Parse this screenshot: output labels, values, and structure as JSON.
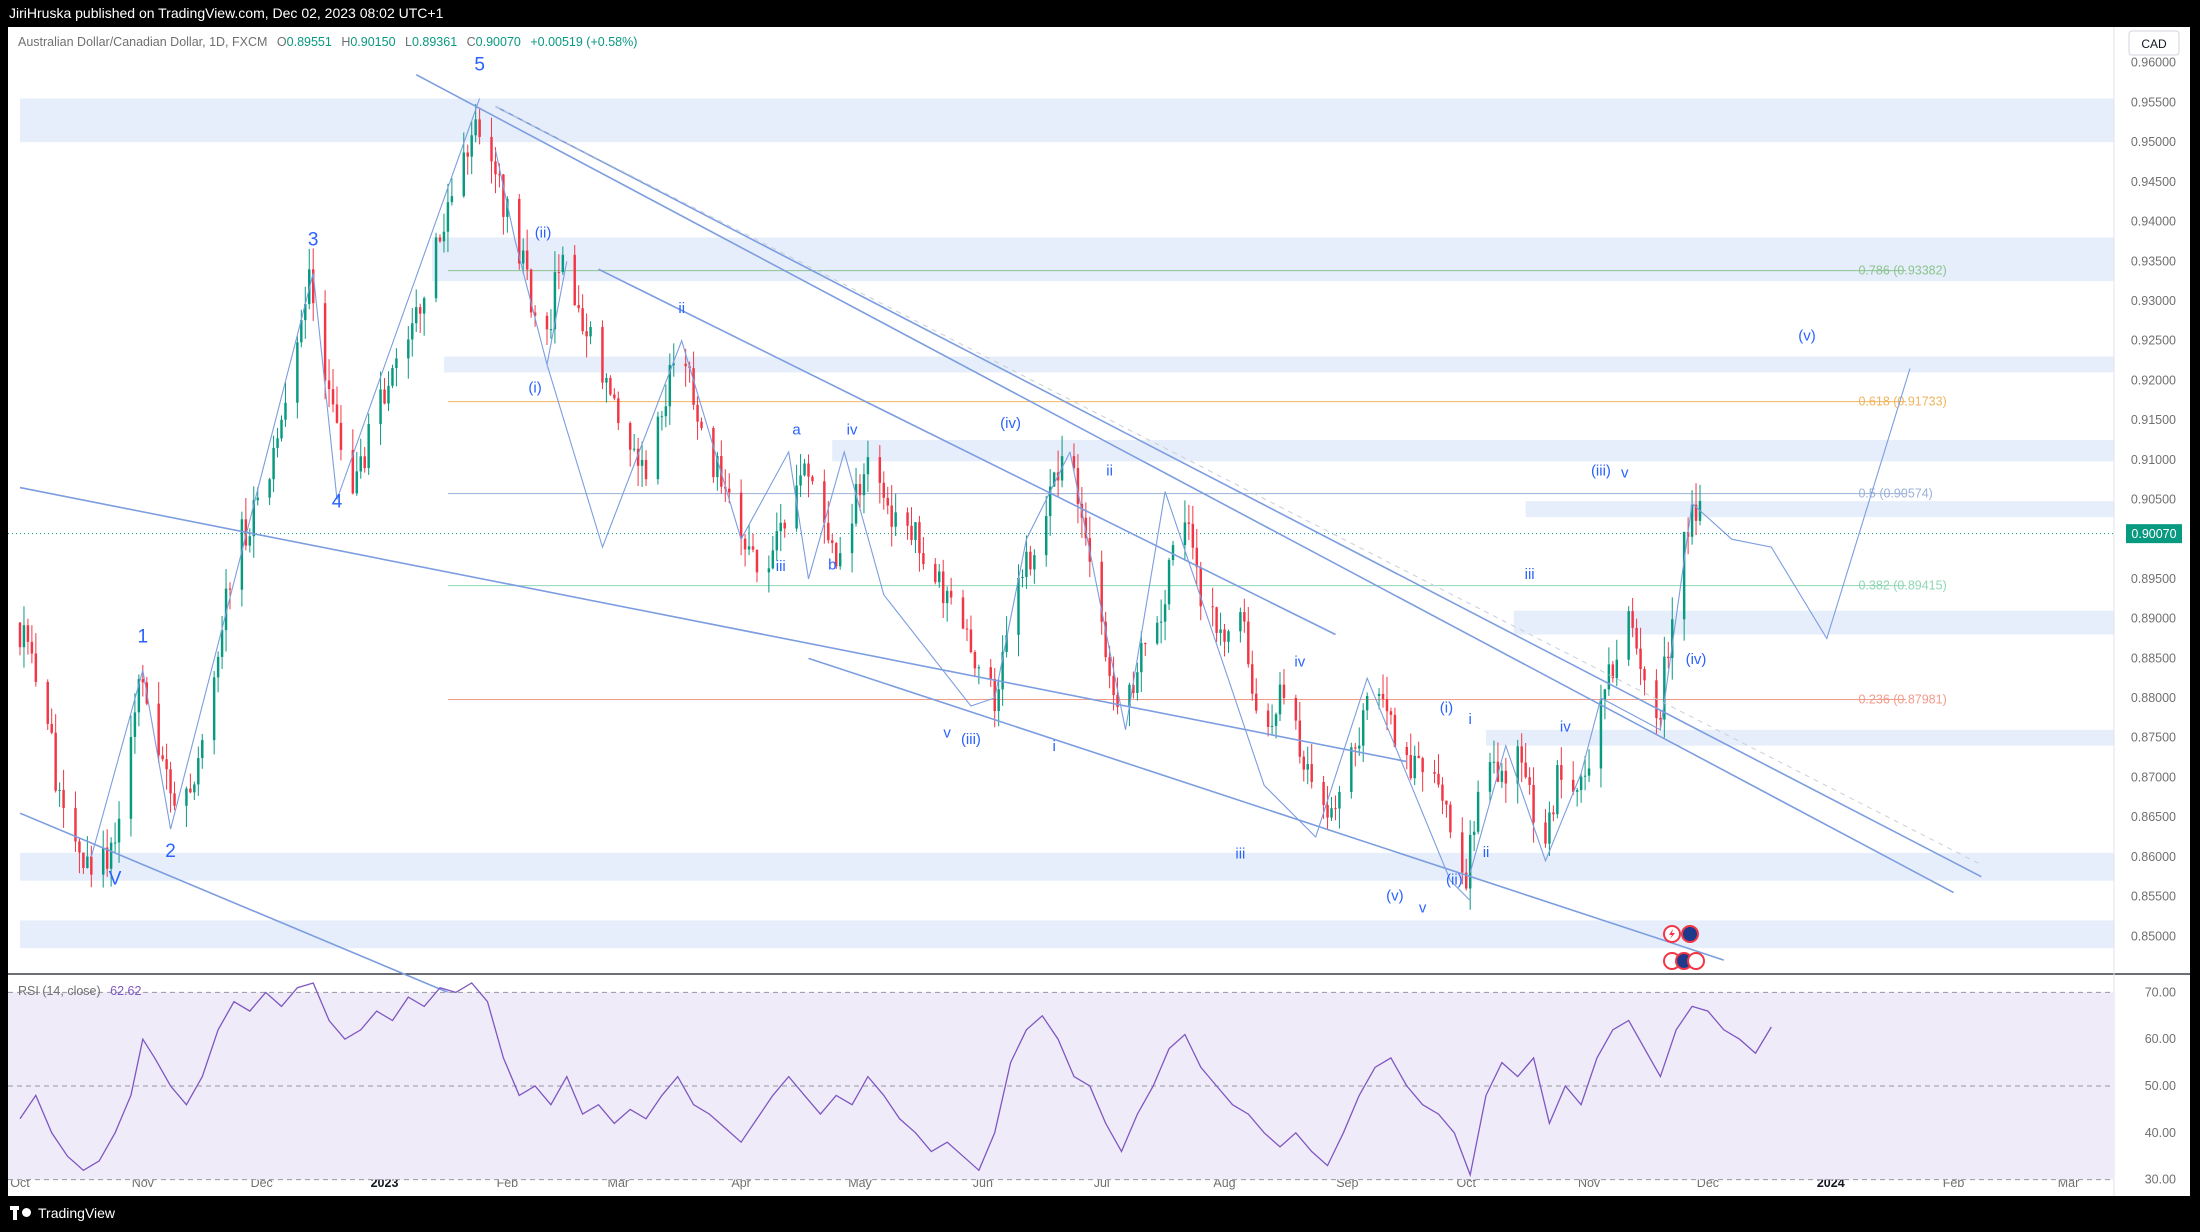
{
  "header": {
    "publisher_text": "JiriHruska published on TradingView.com, Dec 02, 2023 08:02 UTC+1"
  },
  "footer": {
    "logo_text": "TradingView"
  },
  "legend": {
    "symbol": "Australian Dollar/Canadian Dollar, 1D, FXCM",
    "open_label": "O",
    "open": "0.89551",
    "high_label": "H",
    "high": "0.90150",
    "low_label": "L",
    "low": "0.89361",
    "close_label": "C",
    "close": "0.90070",
    "change": "+0.00519 (+0.58%)"
  },
  "currency_button": "CAD",
  "last_price_label": "0.90070",
  "chart_data": {
    "type": "candlestick",
    "symbol": "AUDCAD",
    "timeframe": "1D",
    "ylim": [
      0.8455,
      0.9645
    ],
    "y_ticks": [
      "0.96000",
      "0.95500",
      "0.95000",
      "0.94500",
      "0.94000",
      "0.93500",
      "0.93000",
      "0.92500",
      "0.92000",
      "0.91500",
      "0.91000",
      "0.90500",
      "0.90000",
      "0.89500",
      "0.89000",
      "0.88500",
      "0.88000",
      "0.87500",
      "0.87000",
      "0.86500",
      "0.86000",
      "0.85500",
      "0.85000"
    ],
    "x_ticks": [
      {
        "label": "Oct",
        "day": 0
      },
      {
        "label": "Nov",
        "day": 31
      },
      {
        "label": "Dec",
        "day": 61
      },
      {
        "label": "2023",
        "day": 92,
        "bold": true
      },
      {
        "label": "Feb",
        "day": 123
      },
      {
        "label": "Mar",
        "day": 151
      },
      {
        "label": "Apr",
        "day": 182
      },
      {
        "label": "May",
        "day": 212
      },
      {
        "label": "Jun",
        "day": 243
      },
      {
        "label": "Jul",
        "day": 273
      },
      {
        "label": "Aug",
        "day": 304
      },
      {
        "label": "Sep",
        "day": 335
      },
      {
        "label": "Oct",
        "day": 365
      },
      {
        "label": "Nov",
        "day": 396
      },
      {
        "label": "Dec",
        "day": 426
      },
      {
        "label": "2024",
        "day": 457,
        "bold": true
      },
      {
        "label": "Feb",
        "day": 488
      },
      {
        "label": "Mar",
        "day": 517
      }
    ],
    "last_day": 426,
    "last_price": 0.9007,
    "price_path": [
      [
        0,
        0.8895
      ],
      [
        6,
        0.883
      ],
      [
        12,
        0.864
      ],
      [
        18,
        0.86
      ],
      [
        25,
        0.86
      ],
      [
        28,
        0.87
      ],
      [
        31,
        0.883
      ],
      [
        34,
        0.876
      ],
      [
        38,
        0.869
      ],
      [
        41,
        0.863
      ],
      [
        46,
        0.872
      ],
      [
        52,
        0.89
      ],
      [
        57,
        0.9005
      ],
      [
        62,
        0.905
      ],
      [
        68,
        0.918
      ],
      [
        74,
        0.933
      ],
      [
        80,
        0.915
      ],
      [
        84,
        0.905
      ],
      [
        88,
        0.911
      ],
      [
        94,
        0.92
      ],
      [
        100,
        0.927
      ],
      [
        106,
        0.936
      ],
      [
        111,
        0.944
      ],
      [
        116,
        0.9545
      ],
      [
        120,
        0.948
      ],
      [
        124,
        0.941
      ],
      [
        129,
        0.933
      ],
      [
        133,
        0.923
      ],
      [
        138,
        0.937
      ],
      [
        142,
        0.927
      ],
      [
        147,
        0.923
      ],
      [
        152,
        0.915
      ],
      [
        158,
        0.908
      ],
      [
        163,
        0.916
      ],
      [
        167,
        0.924
      ],
      [
        171,
        0.918
      ],
      [
        176,
        0.91
      ],
      [
        182,
        0.901
      ],
      [
        188,
        0.896
      ],
      [
        194,
        0.902
      ],
      [
        199,
        0.91
      ],
      [
        204,
        0.902
      ],
      [
        208,
        0.896
      ],
      [
        214,
        0.91
      ],
      [
        220,
        0.903
      ],
      [
        227,
        0.9
      ],
      [
        233,
        0.894
      ],
      [
        240,
        0.888
      ],
      [
        247,
        0.88
      ],
      [
        252,
        0.894
      ],
      [
        259,
        0.9
      ],
      [
        264,
        0.911
      ],
      [
        269,
        0.904
      ],
      [
        273,
        0.892
      ],
      [
        279,
        0.875
      ],
      [
        283,
        0.885
      ],
      [
        288,
        0.888
      ],
      [
        294,
        0.905
      ],
      [
        299,
        0.893
      ],
      [
        304,
        0.887
      ],
      [
        310,
        0.89
      ],
      [
        314,
        0.872
      ],
      [
        320,
        0.881
      ],
      [
        327,
        0.869
      ],
      [
        333,
        0.864
      ],
      [
        340,
        0.878
      ],
      [
        345,
        0.882
      ],
      [
        349,
        0.87
      ],
      [
        355,
        0.872
      ],
      [
        361,
        0.866
      ],
      [
        366,
        0.858
      ],
      [
        370,
        0.872
      ],
      [
        375,
        0.87
      ],
      [
        380,
        0.873
      ],
      [
        385,
        0.86
      ],
      [
        389,
        0.87
      ],
      [
        394,
        0.867
      ],
      [
        399,
        0.876
      ],
      [
        403,
        0.884
      ],
      [
        407,
        0.89
      ],
      [
        411,
        0.883
      ],
      [
        414,
        0.876
      ],
      [
        418,
        0.89
      ],
      [
        422,
        0.902
      ],
      [
        426,
        0.9045
      ],
      [
        430,
        0.896
      ],
      [
        434,
        0.904
      ],
      [
        438,
        0.901
      ],
      [
        442,
        0.9007
      ]
    ],
    "rsi": {
      "label": "RSI (14, close)",
      "value": "62.62",
      "ylim": [
        26.5,
        73.5
      ],
      "levels": [
        70,
        50,
        30
      ],
      "tick_labels": [
        "70.00",
        "60.00",
        "50.00",
        "40.00",
        "30.00"
      ],
      "points": [
        [
          0,
          43
        ],
        [
          4,
          48
        ],
        [
          8,
          40
        ],
        [
          12,
          35
        ],
        [
          16,
          32
        ],
        [
          20,
          34
        ],
        [
          24,
          40
        ],
        [
          28,
          48
        ],
        [
          31,
          60
        ],
        [
          34,
          56
        ],
        [
          38,
          50
        ],
        [
          42,
          46
        ],
        [
          46,
          52
        ],
        [
          50,
          62
        ],
        [
          54,
          68
        ],
        [
          58,
          66
        ],
        [
          62,
          70
        ],
        [
          66,
          67
        ],
        [
          70,
          71
        ],
        [
          74,
          72
        ],
        [
          78,
          64
        ],
        [
          82,
          60
        ],
        [
          86,
          62
        ],
        [
          90,
          66
        ],
        [
          94,
          64
        ],
        [
          98,
          69
        ],
        [
          102,
          67
        ],
        [
          106,
          71
        ],
        [
          110,
          70
        ],
        [
          114,
          72
        ],
        [
          118,
          68
        ],
        [
          122,
          56
        ],
        [
          126,
          48
        ],
        [
          130,
          50
        ],
        [
          134,
          46
        ],
        [
          138,
          52
        ],
        [
          142,
          44
        ],
        [
          146,
          46
        ],
        [
          150,
          42
        ],
        [
          154,
          45
        ],
        [
          158,
          43
        ],
        [
          162,
          48
        ],
        [
          166,
          52
        ],
        [
          170,
          46
        ],
        [
          174,
          44
        ],
        [
          178,
          41
        ],
        [
          182,
          38
        ],
        [
          186,
          43
        ],
        [
          190,
          48
        ],
        [
          194,
          52
        ],
        [
          198,
          48
        ],
        [
          202,
          44
        ],
        [
          206,
          48
        ],
        [
          210,
          46
        ],
        [
          214,
          52
        ],
        [
          218,
          48
        ],
        [
          222,
          43
        ],
        [
          226,
          40
        ],
        [
          230,
          36
        ],
        [
          234,
          38
        ],
        [
          238,
          35
        ],
        [
          242,
          32
        ],
        [
          246,
          40
        ],
        [
          250,
          55
        ],
        [
          254,
          62
        ],
        [
          258,
          65
        ],
        [
          262,
          60
        ],
        [
          266,
          52
        ],
        [
          270,
          50
        ],
        [
          274,
          42
        ],
        [
          278,
          36
        ],
        [
          282,
          44
        ],
        [
          286,
          50
        ],
        [
          290,
          58
        ],
        [
          294,
          61
        ],
        [
          298,
          54
        ],
        [
          302,
          50
        ],
        [
          306,
          46
        ],
        [
          310,
          44
        ],
        [
          314,
          40
        ],
        [
          318,
          37
        ],
        [
          322,
          40
        ],
        [
          326,
          36
        ],
        [
          330,
          33
        ],
        [
          334,
          40
        ],
        [
          338,
          48
        ],
        [
          342,
          54
        ],
        [
          346,
          56
        ],
        [
          350,
          50
        ],
        [
          354,
          46
        ],
        [
          358,
          44
        ],
        [
          362,
          40
        ],
        [
          366,
          31
        ],
        [
          370,
          48
        ],
        [
          374,
          55
        ],
        [
          378,
          52
        ],
        [
          382,
          56
        ],
        [
          386,
          42
        ],
        [
          390,
          50
        ],
        [
          394,
          46
        ],
        [
          398,
          56
        ],
        [
          402,
          62
        ],
        [
          406,
          64
        ],
        [
          410,
          58
        ],
        [
          414,
          52
        ],
        [
          418,
          62
        ],
        [
          422,
          67
        ],
        [
          426,
          66
        ],
        [
          430,
          62
        ],
        [
          434,
          60
        ],
        [
          438,
          57
        ],
        [
          442,
          62.6
        ]
      ]
    },
    "zones": [
      {
        "from": 0.95,
        "to": 0.9555,
        "x0": 0
      },
      {
        "from": 0.9325,
        "to": 0.938,
        "x0": 104
      },
      {
        "from": 0.921,
        "to": 0.923,
        "x0": 107
      },
      {
        "from": 0.9098,
        "to": 0.9125,
        "x0": 205
      },
      {
        "from": 0.9028,
        "to": 0.9048,
        "x0": 380
      },
      {
        "from": 0.888,
        "to": 0.891,
        "x0": 377
      },
      {
        "from": 0.874,
        "to": 0.876,
        "x0": 370
      },
      {
        "from": 0.857,
        "to": 0.8605,
        "x0": 0
      },
      {
        "from": 0.8485,
        "to": 0.852,
        "x0": 0
      }
    ],
    "fib_levels": [
      {
        "label": "0.786 (0.93382)",
        "value": 0.93382,
        "color": "#8bc48e"
      },
      {
        "label": "0.618 (0.91733)",
        "value": 0.91733,
        "color": "#f0b45d"
      },
      {
        "label": "0.5 (0.90574)",
        "value": 0.90574,
        "color": "#9ab0d8"
      },
      {
        "label": "0.382 (0.89415)",
        "value": 0.89415,
        "color": "#8fd6b5"
      },
      {
        "label": "0.236 (0.87981)",
        "value": 0.87981,
        "color": "#f29a8a"
      }
    ],
    "trendlines": [
      [
        100,
        0.9585,
        488,
        0.8555
      ],
      [
        0,
        0.9065,
        350,
        0.872
      ],
      [
        0,
        0.8655,
        134,
        0.8375
      ],
      [
        199,
        0.885,
        430,
        0.847
      ],
      [
        146,
        0.934,
        332,
        0.888
      ],
      [
        120,
        0.9545,
        495,
        0.8575
      ]
    ],
    "wave_paths": [
      [
        [
          18,
          0.86
        ],
        [
          31,
          0.8835
        ],
        [
          38,
          0.8635
        ],
        [
          74,
          0.9335
        ],
        [
          80,
          0.905
        ],
        [
          116,
          0.9555
        ]
      ],
      [
        [
          120,
          0.949
        ],
        [
          125,
          0.9375
        ],
        [
          133,
          0.922
        ],
        [
          138,
          0.935
        ]
      ],
      [
        [
          133,
          0.922
        ],
        [
          147,
          0.899
        ],
        [
          167,
          0.925
        ],
        [
          182,
          0.9
        ],
        [
          194,
          0.911
        ],
        [
          199,
          0.895
        ],
        [
          208,
          0.911
        ],
        [
          218,
          0.893
        ],
        [
          240,
          0.879
        ],
        [
          246,
          0.88
        ],
        [
          254,
          0.9
        ],
        [
          265,
          0.911
        ]
      ],
      [
        [
          265,
          0.911
        ],
        [
          279,
          0.876
        ],
        [
          289,
          0.906
        ],
        [
          314,
          0.869
        ],
        [
          327,
          0.8625
        ],
        [
          340,
          0.8825
        ],
        [
          361,
          0.857
        ],
        [
          366,
          0.8545
        ]
      ],
      [
        [
          366,
          0.858
        ],
        [
          375,
          0.874
        ],
        [
          385,
          0.8595
        ],
        [
          394,
          0.8705
        ],
        [
          399,
          0.88
        ],
        [
          414,
          0.876
        ],
        [
          422,
          0.9045
        ],
        [
          432,
          0.9
        ],
        [
          442,
          0.899
        ],
        [
          456,
          0.8875
        ],
        [
          477,
          0.9215
        ]
      ]
    ],
    "wave_labels": [
      {
        "t": "5",
        "x": 116,
        "y": 0.959,
        "size": 19
      },
      {
        "t": "3",
        "x": 74,
        "y": 0.937,
        "size": 19
      },
      {
        "t": "4",
        "x": 80,
        "y": 0.904,
        "size": 19
      },
      {
        "t": "1",
        "x": 31,
        "y": 0.887,
        "size": 19
      },
      {
        "t": "2",
        "x": 38,
        "y": 0.86,
        "size": 19
      },
      {
        "t": "V",
        "x": 24,
        "y": 0.8565,
        "size": 19
      },
      {
        "t": "(ii)",
        "x": 132,
        "y": 0.938
      },
      {
        "t": "(i)",
        "x": 130,
        "y": 0.9185
      },
      {
        "t": "ii",
        "x": 167,
        "y": 0.9285
      },
      {
        "t": "a",
        "x": 196,
        "y": 0.9132
      },
      {
        "t": "iv",
        "x": 210,
        "y": 0.9132
      },
      {
        "t": "iii",
        "x": 192,
        "y": 0.896
      },
      {
        "t": "b",
        "x": 205,
        "y": 0.8962
      },
      {
        "t": "(iv)",
        "x": 250,
        "y": 0.914
      },
      {
        "t": "ii",
        "x": 275,
        "y": 0.908
      },
      {
        "t": "v",
        "x": 234,
        "y": 0.875
      },
      {
        "t": "(iii)",
        "x": 240,
        "y": 0.8742
      },
      {
        "t": "i",
        "x": 261,
        "y": 0.8733
      },
      {
        "t": "iv",
        "x": 323,
        "y": 0.884
      },
      {
        "t": "iii",
        "x": 308,
        "y": 0.8598
      },
      {
        "t": "(v)",
        "x": 347,
        "y": 0.8545
      },
      {
        "t": "v",
        "x": 354,
        "y": 0.853
      },
      {
        "t": "(i)",
        "x": 360,
        "y": 0.8782
      },
      {
        "t": "i",
        "x": 366,
        "y": 0.8767
      },
      {
        "t": "(ii)",
        "x": 362,
        "y": 0.8565
      },
      {
        "t": "ii",
        "x": 370,
        "y": 0.86
      },
      {
        "t": "iii",
        "x": 381,
        "y": 0.895
      },
      {
        "t": "iv",
        "x": 390,
        "y": 0.8758
      },
      {
        "t": "(iii)",
        "x": 399,
        "y": 0.908
      },
      {
        "t": "v",
        "x": 405,
        "y": 0.9078
      },
      {
        "t": "(iv)",
        "x": 423,
        "y": 0.8843
      },
      {
        "t": "(v)",
        "x": 451,
        "y": 0.925
      }
    ]
  }
}
